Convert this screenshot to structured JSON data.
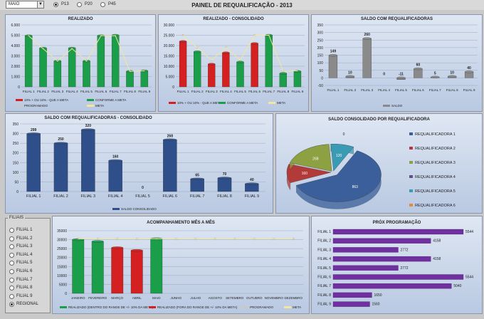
{
  "header": {
    "title": "PAINEL DE REQUALIFICAÇÃO - 2013",
    "month_value": "MAIO",
    "dropdown_icon": "▼",
    "options": [
      {
        "label": "P13",
        "selected": true
      },
      {
        "label": "P20",
        "selected": false
      },
      {
        "label": "P45",
        "selected": false
      }
    ]
  },
  "filiais": {
    "label": "FILIAIS",
    "items": [
      "FILIAL 1",
      "FILIAL 2",
      "FILIAL 3",
      "FILIAL 4",
      "FILIAL 5",
      "FILIAL 6",
      "FILIAL 7",
      "FILIAL 8",
      "FILIAL 9",
      "REGIONAL"
    ],
    "selected": "REGIONAL"
  },
  "colors": {
    "green": "#1a9e4a",
    "red": "#d42020",
    "gray": "#8a8a8a",
    "navy": "#2f4f8a",
    "purple": "#7030a0",
    "meta": "#f2e79a",
    "programado": "#c8c8c8"
  },
  "chart_data": [
    {
      "id": "realizado",
      "type": "bar",
      "title": "REALIZADO",
      "categories": [
        "FILIAL 1",
        "FILIAL 2",
        "FILIAL 3",
        "FILIAL 4",
        "FILIAL 5",
        "FILIAL 6",
        "FILIAL 7",
        "FILIAL 8",
        "FILIAL 9"
      ],
      "ylim": [
        0,
        6000
      ],
      "yticks": [
        "0",
        "1.000",
        "2.000",
        "3.000",
        "4.000",
        "5.000",
        "6.000"
      ],
      "series": [
        {
          "name": "CONFORME A META",
          "values": [
            4950,
            3750,
            2500,
            3750,
            2500,
            4950,
            5000,
            1500,
            1550
          ]
        },
        {
          "name": "META",
          "values": [
            4950,
            3700,
            2500,
            3700,
            2500,
            4950,
            4950,
            1500,
            1550
          ]
        }
      ],
      "legend": [
        "10% + OU 10% - QUE A META",
        "CONFORME A META",
        "PROGRAMADO",
        "META"
      ]
    },
    {
      "id": "consolidado",
      "type": "bar",
      "title": "REALIZADO - CONSOLIDADO",
      "categories": [
        "FILIAL 1",
        "FILIAL 2",
        "FILIAL 3",
        "FILIAL 4",
        "FILIAL 5",
        "FILIAL 6",
        "FILIAL 7",
        "FILIAL 8",
        "FILIAL 9"
      ],
      "ylim": [
        0,
        30000
      ],
      "yticks": [
        "0",
        "5.000",
        "10.000",
        "15.000",
        "20.000",
        "25.000",
        "30.000"
      ],
      "series": [
        {
          "name": "REALIZADO",
          "values": [
            22000,
            17000,
            11000,
            16500,
            12000,
            21000,
            25000,
            6500,
            7500
          ],
          "colors": [
            "red",
            "green",
            "red",
            "red",
            "green",
            "red",
            "green",
            "green",
            "green"
          ]
        },
        {
          "name": "META",
          "values": [
            25000,
            19000,
            13000,
            19000,
            13000,
            25000,
            25000,
            7500,
            7800
          ]
        }
      ],
      "legend": [
        "10% + OU 10% - QUE A META",
        "CONFORME A META",
        "META"
      ]
    },
    {
      "id": "saldo",
      "type": "bar",
      "title": "SALDO COM REQUALIFICADORAS",
      "categories": [
        "FILIAL 1",
        "FILIAL 2",
        "FILIAL 3",
        "FILIAL 4",
        "FILIAL 5",
        "FILIAL 6",
        "FILIAL 7",
        "FILIAL 8",
        "FILIAL 9"
      ],
      "ylim": [
        -50,
        350
      ],
      "yticks": [
        "-50",
        "0",
        "50",
        "100",
        "150",
        "200",
        "250",
        "300",
        "350"
      ],
      "values": [
        149,
        10,
        260,
        0,
        -11,
        60,
        5,
        10,
        40
      ],
      "labels": [
        "149",
        "10",
        "260",
        "0",
        "-11",
        "60",
        "5",
        "10",
        "40"
      ],
      "legend": [
        "SALDO"
      ]
    },
    {
      "id": "saldo_cons",
      "type": "bar",
      "title": "SALDO COM REQUALIFICADORAS - CONSOLIDADO",
      "categories": [
        "FILIAL 1",
        "FILIAL 2",
        "FILIAL 3",
        "FILIAL 4",
        "FILIAL 5",
        "FILIAL 6",
        "FILIAL 7",
        "FILIAL 8",
        "FILIAL 9"
      ],
      "ylim": [
        0,
        350
      ],
      "yticks": [
        "0",
        "50",
        "100",
        "150",
        "200",
        "250",
        "300",
        "350"
      ],
      "values": [
        299,
        250,
        320,
        160,
        0,
        268,
        65,
        70,
        40
      ],
      "labels": [
        "299",
        "250",
        "320",
        "160",
        "0",
        "268",
        "65",
        "70",
        "40"
      ],
      "legend": [
        "SALDO CONSOLIDADO"
      ]
    },
    {
      "id": "pie",
      "type": "pie",
      "title": "SALDO CONSOLIDADO  POR REQUALIFICADORA",
      "labels": [
        "REQUALIFICADORA 1",
        "REQUALIFICADORA 2",
        "REQUALIFICADORA 3",
        "REQUALIFICADORA 4",
        "REQUALIFICADORA 5",
        "REQUALIFICADORA 6"
      ],
      "values": [
        863,
        160,
        268,
        0,
        120,
        0
      ],
      "slice_labels": [
        "863",
        "160",
        "268",
        "0",
        "120",
        "0"
      ],
      "colors": [
        "#3a5f9a",
        "#b23a38",
        "#8ea142",
        "#6a4e8c",
        "#3b9bb5",
        "#e08a3c"
      ]
    },
    {
      "id": "mes",
      "type": "bar",
      "title": "ACOMPANHAMENTO  MÊS A MÊS",
      "categories": [
        "JANEIRO",
        "FEVEREIRO",
        "MARÇO",
        "ABRIL",
        "MAIO",
        "JUNHO",
        "JULHO",
        "AGOSTO",
        "SETEMBRO",
        "OUTUBRO",
        "NOVEMBRO",
        "DEZEMBRO"
      ],
      "ylim": [
        0,
        35000
      ],
      "yticks": [
        "0",
        "5000",
        "10000",
        "15000",
        "20000",
        "25000",
        "30000",
        "35000"
      ],
      "series": [
        {
          "name": "REALIZADO",
          "values": [
            30000,
            29000,
            25500,
            24000,
            30500,
            0,
            0,
            0,
            0,
            0,
            0,
            0
          ],
          "colors": [
            "green",
            "green",
            "red",
            "red",
            "green"
          ]
        },
        {
          "name": "META",
          "values": [
            30500,
            30500,
            30500,
            30500,
            30500,
            30500,
            30500,
            30500,
            30500,
            30500,
            30500,
            30500
          ]
        }
      ],
      "legend": [
        "REALIZADO (DENTRO DO RANGE DE +/- 10% DA META)",
        "REALIZADO (FORA DO RANGE DE +/- 10% DA META)",
        "PROGRAMADO",
        "META"
      ]
    },
    {
      "id": "prox",
      "type": "bar",
      "title": "PRÓX PROGRAMAÇÃO",
      "categories": [
        "FILIAL 1",
        "FILIAL 2",
        "FILIAL 3",
        "FILIAL 4",
        "FILIAL 5",
        "FILIAL 6",
        "FILIAL 7",
        "FILIAL 8",
        "FILIAL 9"
      ],
      "values": [
        5544,
        4158,
        2772,
        4158,
        2772,
        5544,
        5040,
        1650,
        1560
      ],
      "labels": [
        "5544",
        "4158",
        "2772",
        "4158",
        "2772",
        "5544",
        "5040",
        "1650",
        "1560"
      ],
      "xmax": 6000
    }
  ]
}
